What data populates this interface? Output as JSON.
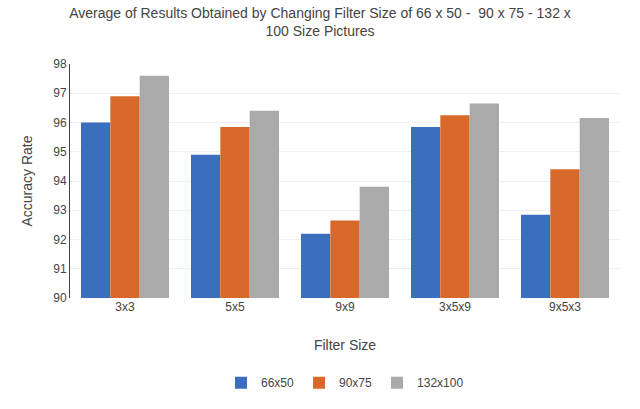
{
  "chart_data": {
    "type": "bar",
    "title": "Average of Results Obtained by Changing Filter Size of 66 x 50 -  90 x 75 - 132 x\n100 Size Pictures",
    "xlabel": "Filter Size",
    "ylabel": "Accuracy Rate",
    "categories": [
      "3x3",
      "5x5",
      "9x9",
      "3x5x9",
      "9x5x3"
    ],
    "series": [
      {
        "name": "66x50",
        "color": "#3C6EBE",
        "values": [
          96.0,
          94.9,
          92.2,
          95.85,
          92.85
        ]
      },
      {
        "name": "90x75",
        "color": "#D9692A",
        "values": [
          96.9,
          95.85,
          92.65,
          96.25,
          94.4
        ]
      },
      {
        "name": "132x100",
        "color": "#AAAAAA",
        "values": [
          97.6,
          96.4,
          93.8,
          96.65,
          96.15
        ]
      }
    ],
    "ylim": [
      90,
      98
    ],
    "yticks": [
      90,
      91,
      92,
      93,
      94,
      95,
      96,
      97,
      98
    ],
    "grid": true,
    "legend": "bottom"
  }
}
